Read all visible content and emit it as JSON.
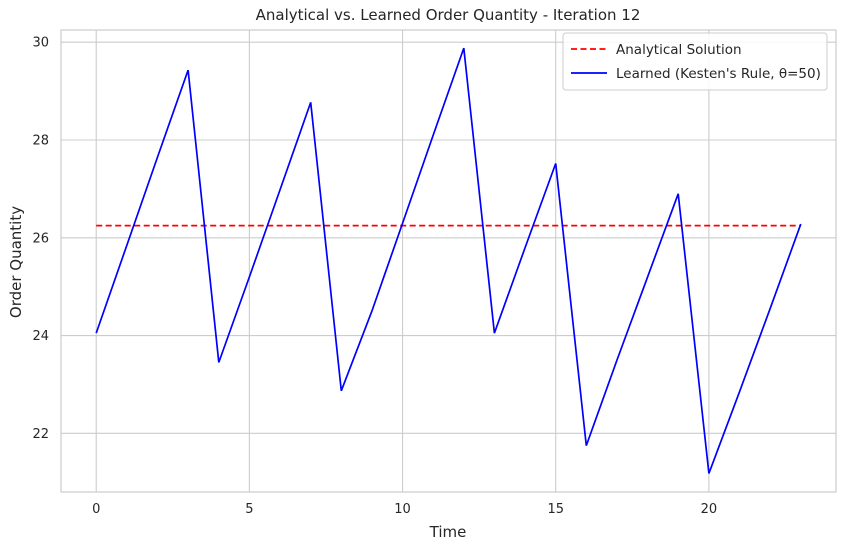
{
  "chart_data": {
    "type": "line",
    "title": "Analytical vs. Learned Order Quantity - Iteration 12",
    "xlabel": "Time",
    "ylabel": "Order Quantity",
    "xlim": [
      -1.15,
      24.15
    ],
    "ylim": [
      20.8,
      30.25
    ],
    "xticks": [
      0,
      5,
      10,
      15,
      20
    ],
    "yticks": [
      22,
      24,
      26,
      28,
      30
    ],
    "grid": true,
    "legend_position": "top-right",
    "series": [
      {
        "name": "Analytical Solution",
        "color": "#ff0000",
        "style": "dashed",
        "x": [
          0,
          23
        ],
        "y": [
          26.25,
          26.25
        ]
      },
      {
        "name": "Learned (Kesten's Rule, θ=50)",
        "color": "#0000ff",
        "style": "solid",
        "x": [
          0,
          1,
          2,
          3,
          4,
          5,
          6,
          7,
          8,
          9,
          10,
          11,
          12,
          13,
          14,
          15,
          16,
          17,
          18,
          19,
          20,
          21,
          22,
          23
        ],
        "y": [
          24.05,
          25.85,
          27.65,
          29.43,
          23.45,
          25.2,
          26.98,
          28.77,
          22.87,
          24.5,
          26.3,
          28.1,
          29.88,
          24.05,
          25.8,
          27.52,
          21.75,
          23.5,
          25.2,
          26.9,
          21.18,
          22.85,
          24.55,
          26.28
        ]
      }
    ]
  }
}
